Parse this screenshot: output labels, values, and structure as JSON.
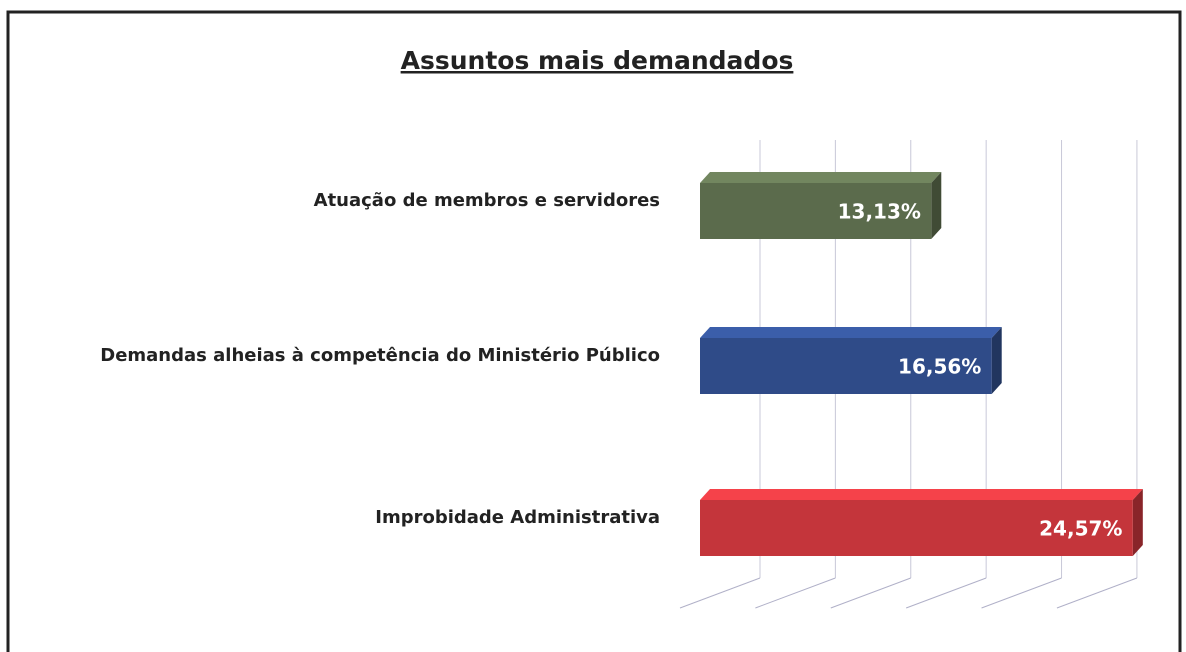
{
  "chart_data": {
    "type": "bar",
    "orientation": "horizontal",
    "title": "Assuntos mais demandados",
    "categories": [
      "Atuação de membros e servidores",
      "Demandas alheias à competência do Ministério Público",
      "Improbidade Administrativa"
    ],
    "values": [
      13.13,
      16.56,
      24.57
    ],
    "value_labels": [
      "13,13%",
      "16,56%",
      "24,57%"
    ],
    "colors": [
      "#5b6b4c",
      "#2f4b88",
      "#c4353b"
    ],
    "xlim": [
      0,
      26
    ],
    "xticks": [
      0,
      5,
      10,
      15,
      20,
      25
    ],
    "grid": true
  }
}
